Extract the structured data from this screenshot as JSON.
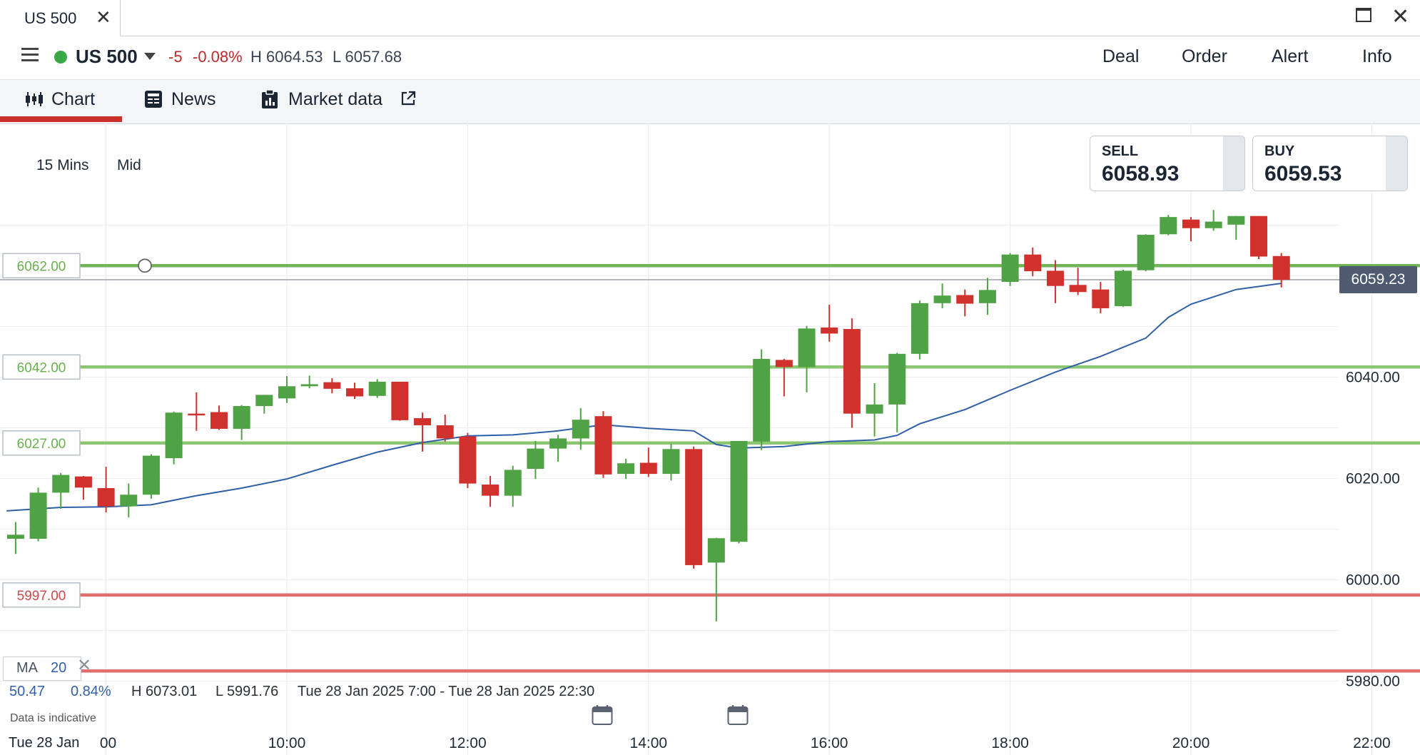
{
  "window": {
    "tab_title": "US 500",
    "close_glyph": "✕",
    "maximize_glyph": "",
    "window_close_glyph": "✕"
  },
  "instrument": {
    "name": "US 500",
    "status_color": "#3aa845",
    "change": "-5",
    "change_pct": "-0.08%",
    "high": "H 6064.53",
    "low": "L 6057.68"
  },
  "actions": {
    "deal": "Deal",
    "order": "Order",
    "alert": "Alert",
    "info": "Info"
  },
  "nav": {
    "chart": "Chart",
    "news": "News",
    "market_data": "Market data"
  },
  "chart_controls": {
    "interval": "15 Mins",
    "price_mode": "Mid"
  },
  "quotes": {
    "sell_label": "SELL",
    "sell_value": "6058.93",
    "buy_label": "BUY",
    "buy_value": "6059.53"
  },
  "current_price": "6059.23",
  "indicator": {
    "name": "MA",
    "period": "20",
    "close_glyph": "✕",
    "value": "50.47",
    "value_pct": "0.84%",
    "high": "H 6073.01",
    "low": "L 5991.76",
    "range": "Tue 28 Jan 2025 7:00 - Tue 28 Jan 2025 22:30"
  },
  "disclaimer": "Data is indicative",
  "date_label": "Tue 28 Jan",
  "chart_data": {
    "type": "candlestick",
    "y_ticks": [
      "6040.00",
      "6020.00",
      "6000.00",
      "5980.00"
    ],
    "y_tick_values": [
      6040,
      6020,
      6000,
      5980
    ],
    "x_ticks": [
      ":00",
      "10:00",
      "12:00",
      "14:00",
      "16:00",
      "18:00",
      "20:00",
      "22:00"
    ],
    "x_tick_hours": [
      8,
      10,
      12,
      14,
      16,
      18,
      20,
      22
    ],
    "levels": [
      {
        "label": "6062.00",
        "value": 6062.0,
        "color": "#6ab04c",
        "kind": "alert"
      },
      {
        "label": "6042.00",
        "value": 6042.0,
        "color": "#86c36b",
        "kind": "alert"
      },
      {
        "label": "6027.00",
        "value": 6027.0,
        "color": "#86c36b",
        "kind": "alert"
      },
      {
        "label": "5997.00",
        "value": 5997.0,
        "color": "#e06666",
        "kind": "alert"
      },
      {
        "label": "",
        "value": 5982.0,
        "color": "#e06666",
        "kind": "alert"
      }
    ],
    "candles": [
      {
        "t": 7.0,
        "o": 6008.1,
        "h": 6011.4,
        "l": 6005.1,
        "c": 6008.9
      },
      {
        "t": 7.25,
        "o": 6008.1,
        "h": 6018.2,
        "l": 6007.6,
        "c": 6017.2
      },
      {
        "t": 7.5,
        "o": 6017.2,
        "h": 6021.1,
        "l": 6014.0,
        "c": 6020.7
      },
      {
        "t": 7.75,
        "o": 6020.4,
        "h": 6020.5,
        "l": 6015.8,
        "c": 6018.2
      },
      {
        "t": 8.0,
        "o": 6018.1,
        "h": 6022.3,
        "l": 6013.3,
        "c": 6014.5
      },
      {
        "t": 8.25,
        "o": 6014.5,
        "h": 6019.0,
        "l": 6012.3,
        "c": 6016.8
      },
      {
        "t": 8.5,
        "o": 6016.8,
        "h": 6024.8,
        "l": 6016.0,
        "c": 6024.5
      },
      {
        "t": 8.75,
        "o": 6024.0,
        "h": 6033.2,
        "l": 6022.8,
        "c": 6033.0
      },
      {
        "t": 9.0,
        "o": 6032.8,
        "h": 6037.0,
        "l": 6029.4,
        "c": 6032.7
      },
      {
        "t": 9.25,
        "o": 6033.1,
        "h": 6034.4,
        "l": 6029.6,
        "c": 6029.8
      },
      {
        "t": 9.5,
        "o": 6029.8,
        "h": 6034.5,
        "l": 6027.6,
        "c": 6034.3
      },
      {
        "t": 9.75,
        "o": 6034.3,
        "h": 6036.5,
        "l": 6032.8,
        "c": 6036.5
      },
      {
        "t": 10.0,
        "o": 6035.8,
        "h": 6040.2,
        "l": 6034.9,
        "c": 6038.2
      },
      {
        "t": 10.25,
        "o": 6038.2,
        "h": 6040.3,
        "l": 6037.8,
        "c": 6038.6
      },
      {
        "t": 10.5,
        "o": 6039.0,
        "h": 6039.8,
        "l": 6036.8,
        "c": 6037.7
      },
      {
        "t": 10.75,
        "o": 6037.8,
        "h": 6038.9,
        "l": 6035.7,
        "c": 6036.2
      },
      {
        "t": 11.0,
        "o": 6036.3,
        "h": 6039.6,
        "l": 6035.9,
        "c": 6039.1
      },
      {
        "t": 11.25,
        "o": 6039.1,
        "h": 6039.1,
        "l": 6031.4,
        "c": 6031.5
      },
      {
        "t": 11.5,
        "o": 6031.9,
        "h": 6033.0,
        "l": 6025.3,
        "c": 6030.5
      },
      {
        "t": 11.75,
        "o": 6030.5,
        "h": 6032.6,
        "l": 6027.3,
        "c": 6027.9
      },
      {
        "t": 12.0,
        "o": 6028.3,
        "h": 6029.0,
        "l": 6018.1,
        "c": 6019.0
      },
      {
        "t": 12.25,
        "o": 6018.8,
        "h": 6020.5,
        "l": 6014.4,
        "c": 6016.6
      },
      {
        "t": 12.5,
        "o": 6016.6,
        "h": 6022.5,
        "l": 6014.4,
        "c": 6021.7
      },
      {
        "t": 12.75,
        "o": 6021.9,
        "h": 6027.4,
        "l": 6019.9,
        "c": 6025.9
      },
      {
        "t": 13.0,
        "o": 6025.9,
        "h": 6028.6,
        "l": 6023.3,
        "c": 6027.9
      },
      {
        "t": 13.25,
        "o": 6027.9,
        "h": 6033.9,
        "l": 6025.7,
        "c": 6031.6
      },
      {
        "t": 13.5,
        "o": 6032.3,
        "h": 6033.3,
        "l": 6020.1,
        "c": 6020.8
      },
      {
        "t": 13.75,
        "o": 6020.9,
        "h": 6023.9,
        "l": 6019.9,
        "c": 6023.0
      },
      {
        "t": 14.0,
        "o": 6023.1,
        "h": 6026.1,
        "l": 6020.3,
        "c": 6020.9
      },
      {
        "t": 14.25,
        "o": 6020.9,
        "h": 6026.9,
        "l": 6019.6,
        "c": 6025.8
      },
      {
        "t": 14.5,
        "o": 6025.8,
        "h": 6026.3,
        "l": 6002.2,
        "c": 6002.9
      },
      {
        "t": 14.75,
        "o": 6003.4,
        "h": 6008.3,
        "l": 5991.8,
        "c": 6008.2
      },
      {
        "t": 15.0,
        "o": 6007.5,
        "h": 6027.4,
        "l": 6007.2,
        "c": 6027.4
      },
      {
        "t": 15.25,
        "o": 6027.3,
        "h": 6045.5,
        "l": 6025.6,
        "c": 6043.6
      },
      {
        "t": 15.5,
        "o": 6043.4,
        "h": 6043.6,
        "l": 6036.2,
        "c": 6042.0
      },
      {
        "t": 15.75,
        "o": 6042.0,
        "h": 6050.1,
        "l": 6037.0,
        "c": 6049.6
      },
      {
        "t": 16.0,
        "o": 6049.8,
        "h": 6054.3,
        "l": 6047.0,
        "c": 6048.6
      },
      {
        "t": 16.25,
        "o": 6049.5,
        "h": 6051.6,
        "l": 6030.0,
        "c": 6032.8
      },
      {
        "t": 16.5,
        "o": 6032.8,
        "h": 6038.8,
        "l": 6028.3,
        "c": 6034.6
      },
      {
        "t": 16.75,
        "o": 6034.6,
        "h": 6044.8,
        "l": 6029.1,
        "c": 6044.6
      },
      {
        "t": 17.0,
        "o": 6044.6,
        "h": 6055.1,
        "l": 6043.5,
        "c": 6054.6
      },
      {
        "t": 17.25,
        "o": 6054.6,
        "h": 6058.5,
        "l": 6053.6,
        "c": 6056.1
      },
      {
        "t": 17.5,
        "o": 6056.2,
        "h": 6057.3,
        "l": 6052.0,
        "c": 6054.5
      },
      {
        "t": 17.75,
        "o": 6054.6,
        "h": 6059.6,
        "l": 6052.3,
        "c": 6057.2
      },
      {
        "t": 18.0,
        "o": 6058.8,
        "h": 6064.5,
        "l": 6058.0,
        "c": 6064.2
      },
      {
        "t": 18.25,
        "o": 6064.2,
        "h": 6065.6,
        "l": 6059.9,
        "c": 6060.9
      },
      {
        "t": 18.5,
        "o": 6061.0,
        "h": 6063.1,
        "l": 6054.6,
        "c": 6058.0
      },
      {
        "t": 18.75,
        "o": 6058.2,
        "h": 6061.6,
        "l": 6056.2,
        "c": 6056.8
      },
      {
        "t": 19.0,
        "o": 6057.3,
        "h": 6058.8,
        "l": 6052.6,
        "c": 6053.6
      },
      {
        "t": 19.25,
        "o": 6054.0,
        "h": 6061.2,
        "l": 6053.9,
        "c": 6061.0
      },
      {
        "t": 19.5,
        "o": 6061.1,
        "h": 6068.2,
        "l": 6060.9,
        "c": 6068.1
      },
      {
        "t": 19.75,
        "o": 6068.2,
        "h": 6072.0,
        "l": 6068.0,
        "c": 6071.6
      },
      {
        "t": 20.0,
        "o": 6071.1,
        "h": 6071.6,
        "l": 6066.8,
        "c": 6069.4
      },
      {
        "t": 20.25,
        "o": 6069.4,
        "h": 6073.0,
        "l": 6068.9,
        "c": 6070.7
      },
      {
        "t": 20.5,
        "o": 6070.1,
        "h": 6071.8,
        "l": 6067.1,
        "c": 6071.8
      },
      {
        "t": 20.75,
        "o": 6071.8,
        "h": 6071.8,
        "l": 6063.3,
        "c": 6063.8
      },
      {
        "t": 21.0,
        "o": 6063.9,
        "h": 6064.5,
        "l": 6057.7,
        "c": 6059.2
      }
    ],
    "ma_series": {
      "name": "MA 20",
      "color": "#2f5fa7",
      "points": [
        [
          6.9,
          6013.6
        ],
        [
          7.5,
          6014.3
        ],
        [
          8.0,
          6014.4
        ],
        [
          8.5,
          6014.8
        ],
        [
          9.0,
          6016.6
        ],
        [
          9.5,
          6018.1
        ],
        [
          10.0,
          6019.9
        ],
        [
          10.5,
          6022.6
        ],
        [
          11.0,
          6025.2
        ],
        [
          11.5,
          6027.1
        ],
        [
          12.0,
          6028.4
        ],
        [
          12.5,
          6028.6
        ],
        [
          13.0,
          6029.4
        ],
        [
          13.5,
          6030.6
        ],
        [
          14.0,
          6029.9
        ],
        [
          14.5,
          6029.4
        ],
        [
          14.75,
          6026.7
        ],
        [
          15.0,
          6026.0
        ],
        [
          15.5,
          6026.3
        ],
        [
          16.0,
          6027.3
        ],
        [
          16.5,
          6027.6
        ],
        [
          16.75,
          6028.5
        ],
        [
          17.0,
          6030.8
        ],
        [
          17.5,
          6033.6
        ],
        [
          18.0,
          6037.4
        ],
        [
          18.5,
          6041.0
        ],
        [
          19.0,
          6044.1
        ],
        [
          19.5,
          6047.7
        ],
        [
          19.75,
          6051.8
        ],
        [
          20.0,
          6054.4
        ],
        [
          20.5,
          6057.3
        ],
        [
          21.0,
          6058.5
        ]
      ]
    },
    "current_price": 6059.23
  }
}
